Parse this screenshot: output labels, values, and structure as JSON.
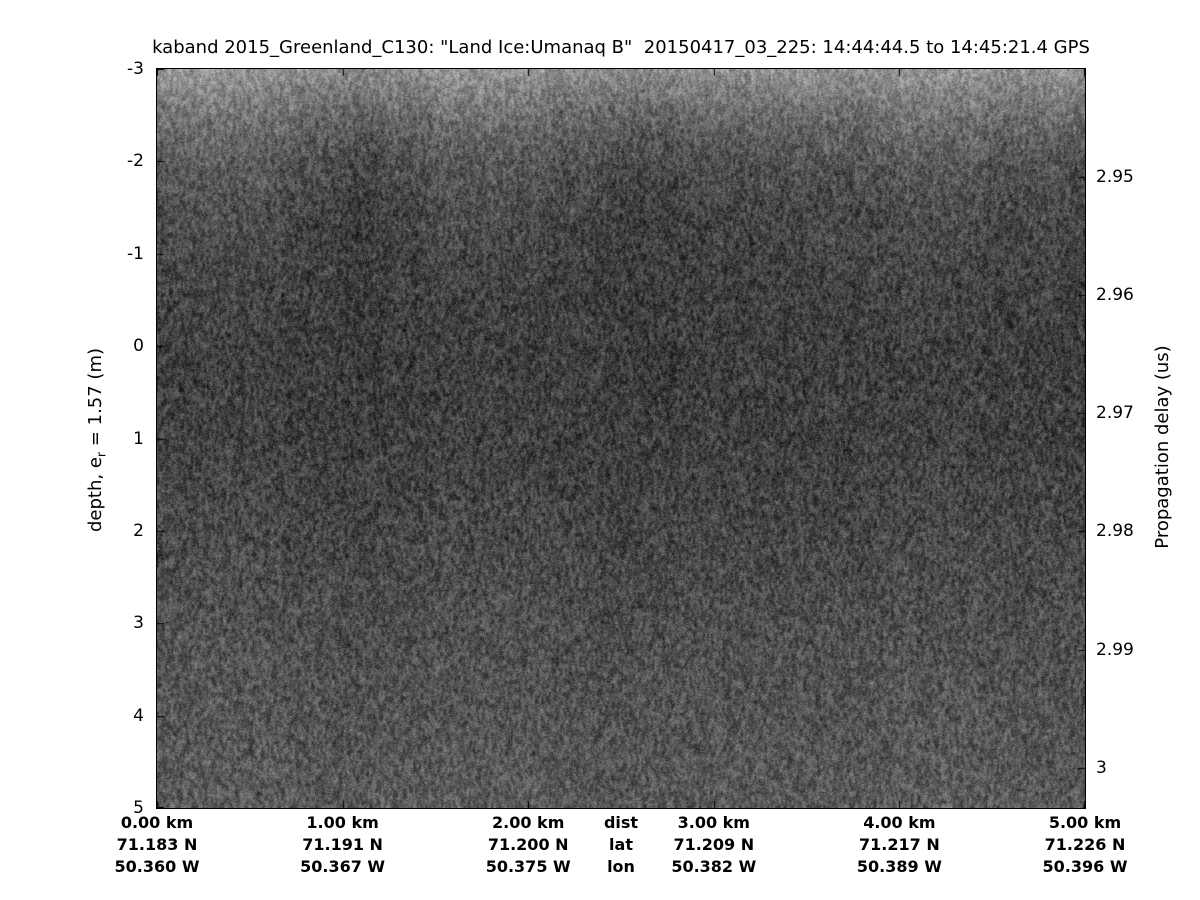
{
  "chart_data": {
    "type": "heatmap",
    "title": "kaband 2015_Greenland_C130: \"Land Ice:Umanaq B\"  20150417_03_225: 14:44:44.5 to 14:45:21.4 GPS",
    "description": "Ka-band radar altimeter echogram over Greenland land ice; grayscale speckle image, dark band of strong return near depth -2 to +1 m, brighter toward top edge and lower depths",
    "x_axis": {
      "name": "distance",
      "unit": "km",
      "range_km": [
        0,
        5
      ],
      "ticks_km": [
        0,
        1,
        2,
        3,
        4,
        5
      ]
    },
    "y_left": {
      "label_pre": "depth, e",
      "label_sub": "r",
      "label_post": " = 1.57 (m)",
      "unit": "m",
      "range": [
        -3,
        5
      ],
      "ticks": [
        -3,
        -2,
        -1,
        0,
        1,
        2,
        3,
        4,
        5
      ],
      "tick_labels": [
        "-3",
        "-2",
        "-1",
        "0",
        "1",
        "2",
        "3",
        "4",
        "5"
      ]
    },
    "y_right": {
      "label": "Propagation delay (us)",
      "unit": "us",
      "range_us": [
        2.9409,
        3.0034
      ],
      "ticks": [
        2.95,
        2.96,
        2.97,
        2.98,
        2.99,
        3
      ],
      "tick_labels": [
        "2.95",
        "2.96",
        "2.97",
        "2.98",
        "2.99",
        "3"
      ]
    },
    "bottom_rows": {
      "labels": [
        "dist",
        "lat",
        "lon"
      ],
      "ticks": [
        {
          "dist": "0.00 km",
          "lat": "71.183 N",
          "lon": "50.360 W"
        },
        {
          "dist": "1.00 km",
          "lat": "71.191 N",
          "lon": "50.367 W"
        },
        {
          "dist": "2.00 km",
          "lat": "71.200 N",
          "lon": "50.375 W"
        },
        {
          "dist": "3.00 km",
          "lat": "71.209 N",
          "lon": "50.382 W"
        },
        {
          "dist": "4.00 km",
          "lat": "71.217 N",
          "lon": "50.389 W"
        },
        {
          "dist": "5.00 km",
          "lat": "71.226 N",
          "lon": "50.396 W"
        }
      ]
    },
    "image": {
      "style": "grayscale speckle noise, vertical streaky grain",
      "intensity_profile": [
        [
          0.0,
          146
        ],
        [
          0.015,
          136
        ],
        [
          0.045,
          118
        ],
        [
          0.085,
          96
        ],
        [
          0.135,
          80
        ],
        [
          0.2,
          70
        ],
        [
          0.28,
          65
        ],
        [
          0.38,
          62
        ],
        [
          0.5,
          64
        ],
        [
          0.62,
          71
        ],
        [
          0.75,
          79
        ],
        [
          0.88,
          85
        ],
        [
          1.0,
          90
        ]
      ],
      "column_bands": [
        [
          60,
          55,
          13
        ],
        [
          320,
          50,
          11
        ],
        [
          770,
          65,
          10
        ],
        [
          195,
          45,
          -8
        ],
        [
          475,
          70,
          -6
        ]
      ]
    },
    "colors": {
      "background": "#ffffff",
      "axis": "#000000",
      "text": "#000000"
    }
  }
}
